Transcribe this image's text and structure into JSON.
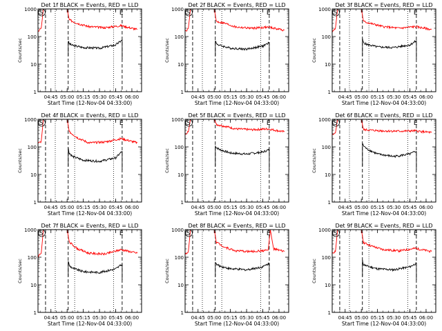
{
  "ylabel": "Counts/sec",
  "xlabel": "Start Time (12-Nov-04 04:33:00)",
  "x_ticks": [
    "04:45",
    "05:00",
    "05:15",
    "05:30",
    "05:45",
    "06:00"
  ],
  "y_ticks": [
    "1",
    "10",
    "100",
    "1000"
  ],
  "marker_S": "S",
  "marker_E": "E",
  "colors": {
    "events": "#000000",
    "lld": "#ff0000",
    "axis": "#000000"
  },
  "chart_data": [
    {
      "type": "line",
      "title": "Det 1f  BLACK = Events, RED = LLD",
      "xlabel": "Start Time (12-Nov-04 04:33:00)",
      "ylabel": "Counts/sec",
      "ylim": [
        1,
        1000
      ],
      "y_scale": "log",
      "series": [
        {
          "name": "Events",
          "color": "#000000",
          "x": [
            "05:01",
            "05:02",
            "05:05",
            "05:15",
            "05:30",
            "05:45",
            "05:51"
          ],
          "values": [
            70,
            55,
            48,
            40,
            38,
            50,
            75
          ]
        },
        {
          "name": "LLD",
          "color": "#ff0000",
          "x": [
            "04:33",
            "04:36",
            "04:38",
            "04:40",
            "05:00",
            "05:02",
            "05:10",
            "05:20",
            "05:35",
            "05:50",
            "06:05"
          ],
          "values": [
            150,
            200,
            1000,
            1000,
            1000,
            400,
            300,
            230,
            210,
            250,
            180
          ]
        }
      ],
      "vlines_dashed": [
        "04:40",
        "05:01",
        "05:51"
      ],
      "vlines_dotted": [
        "04:49",
        "05:07",
        "05:43"
      ]
    },
    {
      "type": "line",
      "title": "Det 2f  BLACK = Events, RED = LLD",
      "xlabel": "Start Time (12-Nov-04 04:33:00)",
      "ylabel": "Counts/sec",
      "ylim": [
        1,
        1000
      ],
      "y_scale": "log",
      "series": [
        {
          "name": "Events",
          "color": "#000000",
          "x": [
            "05:01",
            "05:02",
            "05:05",
            "05:15",
            "05:30",
            "05:45",
            "05:51"
          ],
          "values": [
            75,
            55,
            48,
            38,
            35,
            45,
            60
          ]
        },
        {
          "name": "LLD",
          "color": "#ff0000",
          "x": [
            "04:33",
            "04:36",
            "04:38",
            "04:40",
            "05:00",
            "05:02",
            "05:10",
            "05:20",
            "05:35",
            "05:50",
            "06:05"
          ],
          "values": [
            150,
            200,
            1000,
            1000,
            1000,
            350,
            300,
            220,
            200,
            220,
            170
          ]
        }
      ],
      "vlines_dashed": [
        "04:40",
        "05:01",
        "05:51"
      ],
      "vlines_dotted": [
        "04:49",
        "05:07",
        "05:43"
      ]
    },
    {
      "type": "line",
      "title": "Det 3f  BLACK = Events, RED = LLD",
      "xlabel": "Start Time (12-Nov-04 04:33:00)",
      "ylabel": "Counts/sec",
      "ylim": [
        1,
        1000
      ],
      "y_scale": "log",
      "series": [
        {
          "name": "Events",
          "color": "#000000",
          "x": [
            "05:01",
            "05:02",
            "05:05",
            "05:15",
            "05:30",
            "05:45",
            "05:51"
          ],
          "values": [
            80,
            60,
            52,
            42,
            40,
            50,
            70
          ]
        },
        {
          "name": "LLD",
          "color": "#ff0000",
          "x": [
            "04:33",
            "04:36",
            "04:38",
            "04:40",
            "05:00",
            "05:02",
            "05:10",
            "05:20",
            "05:35",
            "05:50",
            "06:05"
          ],
          "values": [
            150,
            200,
            1000,
            1000,
            1000,
            350,
            290,
            230,
            200,
            230,
            180
          ]
        }
      ],
      "vlines_dashed": [
        "04:40",
        "05:01",
        "05:51"
      ],
      "vlines_dotted": [
        "04:49",
        "05:07",
        "05:43"
      ]
    },
    {
      "type": "line",
      "title": "Det 4f  BLACK = Events, RED = LLD",
      "xlabel": "Start Time (12-Nov-04 04:33:00)",
      "ylabel": "Counts/sec",
      "ylim": [
        1,
        1000
      ],
      "y_scale": "log",
      "series": [
        {
          "name": "Events",
          "color": "#000000",
          "x": [
            "05:01",
            "05:02",
            "05:05",
            "05:15",
            "05:30",
            "05:45",
            "05:51"
          ],
          "values": [
            90,
            60,
            45,
            33,
            30,
            40,
            70
          ]
        },
        {
          "name": "LLD",
          "color": "#ff0000",
          "x": [
            "04:33",
            "04:36",
            "04:38",
            "04:40",
            "05:00",
            "05:02",
            "05:10",
            "05:20",
            "05:35",
            "05:50",
            "06:05"
          ],
          "values": [
            130,
            160,
            1000,
            1000,
            1000,
            350,
            210,
            140,
            150,
            200,
            140
          ]
        }
      ],
      "vlines_dashed": [
        "04:40",
        "05:01",
        "05:51"
      ],
      "vlines_dotted": [
        "04:49",
        "05:07",
        "05:43"
      ]
    },
    {
      "type": "line",
      "title": "Det 5f  BLACK = Events, RED = LLD",
      "xlabel": "Start Time (12-Nov-04 04:33:00)",
      "ylabel": "Counts/sec",
      "ylim": [
        1,
        1000
      ],
      "y_scale": "log",
      "series": [
        {
          "name": "Events",
          "color": "#000000",
          "x": [
            "05:01",
            "05:02",
            "05:05",
            "05:15",
            "05:30",
            "05:45",
            "05:51"
          ],
          "values": [
            110,
            95,
            80,
            60,
            55,
            65,
            80
          ]
        },
        {
          "name": "LLD",
          "color": "#ff0000",
          "x": [
            "04:33",
            "04:36",
            "04:38",
            "04:40",
            "05:00",
            "05:02",
            "05:10",
            "05:20",
            "05:35",
            "05:50",
            "06:05"
          ],
          "values": [
            300,
            350,
            1000,
            1000,
            1000,
            650,
            560,
            450,
            420,
            450,
            350
          ]
        }
      ],
      "vlines_dashed": [
        "04:40",
        "05:01",
        "05:51"
      ],
      "vlines_dotted": [
        "04:49",
        "05:07",
        "05:43"
      ]
    },
    {
      "type": "line",
      "title": "Det 6f  BLACK = Events, RED = LLD",
      "xlabel": "Start Time (12-Nov-04 04:33:00)",
      "ylabel": "Counts/sec",
      "ylim": [
        1,
        1000
      ],
      "y_scale": "log",
      "series": [
        {
          "name": "Events",
          "color": "#000000",
          "x": [
            "05:01",
            "05:02",
            "05:05",
            "05:15",
            "05:30",
            "05:45",
            "05:51"
          ],
          "values": [
            130,
            110,
            85,
            55,
            45,
            55,
            70
          ]
        },
        {
          "name": "LLD",
          "color": "#ff0000",
          "x": [
            "04:33",
            "04:36",
            "04:38",
            "04:40",
            "05:00",
            "05:02",
            "05:10",
            "05:20",
            "05:35",
            "05:50",
            "06:05"
          ],
          "values": [
            280,
            320,
            1000,
            1000,
            1000,
            420,
            400,
            380,
            370,
            380,
            330
          ]
        }
      ],
      "vlines_dashed": [
        "04:40",
        "05:01",
        "05:51"
      ],
      "vlines_dotted": [
        "04:49",
        "05:07",
        "05:43"
      ]
    },
    {
      "type": "line",
      "title": "Det 7f  BLACK = Events, RED = LLD",
      "xlabel": "Start Time (12-Nov-04 04:33:00)",
      "ylabel": "Counts/sec",
      "ylim": [
        1,
        1000
      ],
      "y_scale": "log",
      "series": [
        {
          "name": "Events",
          "color": "#000000",
          "x": [
            "05:01",
            "05:02",
            "05:05",
            "05:15",
            "05:30",
            "05:45",
            "05:51"
          ],
          "values": [
            75,
            50,
            40,
            30,
            28,
            38,
            55
          ]
        },
        {
          "name": "LLD",
          "color": "#ff0000",
          "x": [
            "04:33",
            "04:36",
            "04:38",
            "04:40",
            "05:00",
            "05:02",
            "05:10",
            "05:20",
            "05:35",
            "05:50",
            "06:05"
          ],
          "values": [
            110,
            140,
            1000,
            1000,
            1000,
            350,
            200,
            140,
            130,
            190,
            140
          ]
        }
      ],
      "vlines_dashed": [
        "04:40",
        "05:01",
        "05:51"
      ],
      "vlines_dotted": [
        "04:49",
        "05:07",
        "05:43"
      ]
    },
    {
      "type": "line",
      "title": "Det 8f  BLACK = Events, RED = LLD",
      "xlabel": "Start Time (12-Nov-04 04:33:00)",
      "ylabel": "Counts/sec",
      "ylim": [
        1,
        1000
      ],
      "y_scale": "log",
      "series": [
        {
          "name": "Events",
          "color": "#000000",
          "x": [
            "05:01",
            "05:02",
            "05:05",
            "05:15",
            "05:30",
            "05:45",
            "05:51"
          ],
          "values": [
            70,
            55,
            48,
            38,
            35,
            45,
            60
          ]
        },
        {
          "name": "LLD",
          "color": "#ff0000",
          "x": [
            "04:33",
            "04:36",
            "04:38",
            "04:40",
            "05:00",
            "05:02",
            "05:10",
            "05:20",
            "05:35",
            "05:50",
            "05:52",
            "05:55",
            "06:05"
          ],
          "values": [
            130,
            160,
            1000,
            1000,
            1000,
            350,
            230,
            170,
            160,
            180,
            1000,
            200,
            160
          ]
        }
      ],
      "vlines_dashed": [
        "04:40",
        "05:01",
        "05:51"
      ],
      "vlines_dotted": [
        "04:49",
        "05:07",
        "05:43"
      ]
    },
    {
      "type": "line",
      "title": "Det 9f  BLACK = Events, RED = LLD",
      "xlabel": "Start Time (12-Nov-04 04:33:00)",
      "ylabel": "Counts/sec",
      "ylim": [
        1,
        1000
      ],
      "y_scale": "log",
      "series": [
        {
          "name": "Events",
          "color": "#000000",
          "x": [
            "05:01",
            "05:02",
            "05:05",
            "05:15",
            "05:30",
            "05:45",
            "05:51"
          ],
          "values": [
            75,
            55,
            48,
            38,
            35,
            45,
            60
          ]
        },
        {
          "name": "LLD",
          "color": "#ff0000",
          "x": [
            "04:33",
            "04:36",
            "04:38",
            "04:40",
            "05:00",
            "05:02",
            "05:10",
            "05:20",
            "05:35",
            "05:50",
            "06:05"
          ],
          "values": [
            130,
            160,
            1000,
            1000,
            1000,
            340,
            250,
            190,
            170,
            210,
            160
          ]
        }
      ],
      "vlines_dashed": [
        "04:40",
        "05:01",
        "05:51"
      ],
      "vlines_dotted": [
        "04:49",
        "05:07",
        "05:43"
      ]
    }
  ]
}
